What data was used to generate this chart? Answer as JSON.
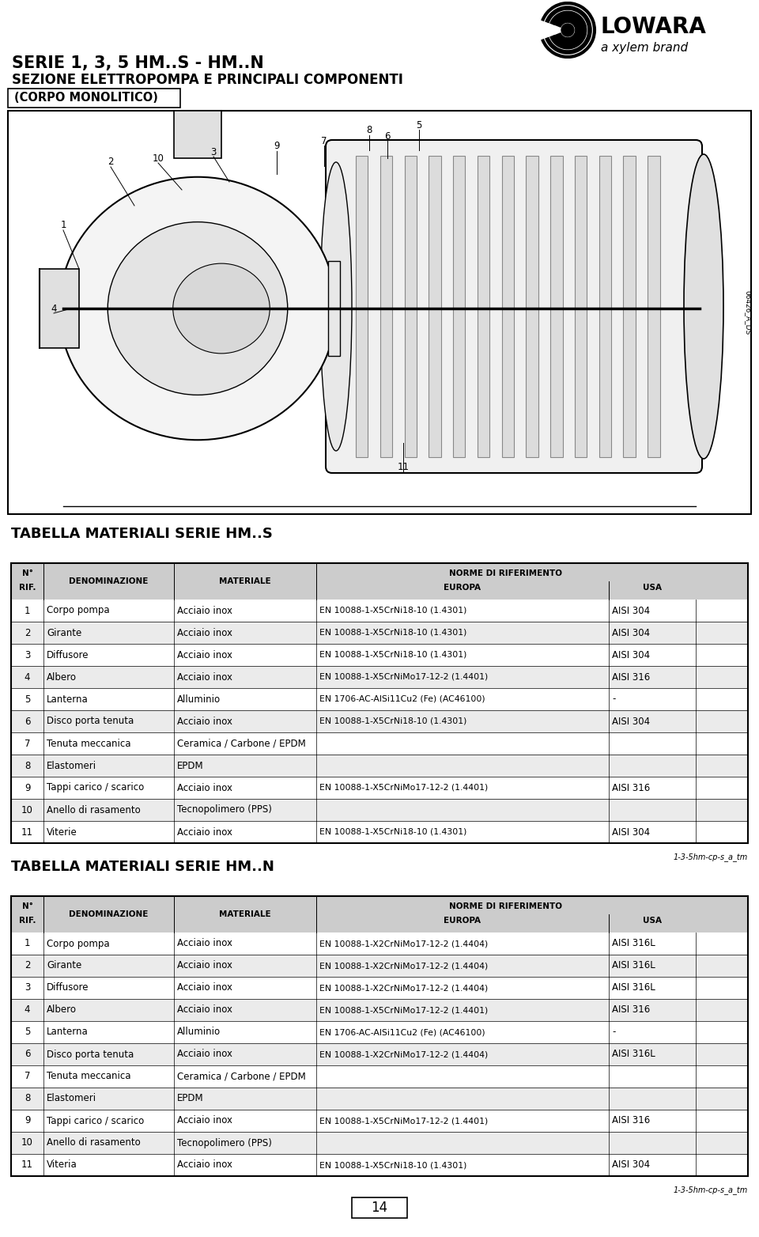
{
  "page_title_line1": "SERIE 1, 3, 5 HM..S - HM..N",
  "page_title_line2": "SEZIONE ELETTROPOMPA E PRINCIPALI COMPONENTI",
  "corpo_label": "(CORPO MONOLITICO)",
  "logo_text": "LOWARA",
  "xylem_text": "a xylem brand",
  "watermark": "06426_A_DS",
  "footer_code": "1-3-5hm-cp-s_a_tm",
  "page_number": "14",
  "table1_title": "TABELLA MATERIALI SERIE HM..S",
  "table2_title": "TABELLA MATERIALI SERIE HM..N",
  "table_s_rows": [
    [
      "1",
      "Corpo pompa",
      "Acciaio inox",
      "EN 10088-1-X5CrNi18-10 (1.4301)",
      "AISI 304"
    ],
    [
      "2",
      "Girante",
      "Acciaio inox",
      "EN 10088-1-X5CrNi18-10 (1.4301)",
      "AISI 304"
    ],
    [
      "3",
      "Diffusore",
      "Acciaio inox",
      "EN 10088-1-X5CrNi18-10 (1.4301)",
      "AISI 304"
    ],
    [
      "4",
      "Albero",
      "Acciaio inox",
      "EN 10088-1-X5CrNiMo17-12-2 (1.4401)",
      "AISI 316"
    ],
    [
      "5",
      "Lanterna",
      "Alluminio",
      "EN 1706-AC-AlSi11Cu2 (Fe) (AC46100)",
      "-"
    ],
    [
      "6",
      "Disco porta tenuta",
      "Acciaio inox",
      "EN 10088-1-X5CrNi18-10 (1.4301)",
      "AISI 304"
    ],
    [
      "7",
      "Tenuta meccanica",
      "Ceramica / Carbone / EPDM",
      "",
      ""
    ],
    [
      "8",
      "Elastomeri",
      "EPDM",
      "",
      ""
    ],
    [
      "9",
      "Tappi carico / scarico",
      "Acciaio inox",
      "EN 10088-1-X5CrNiMo17-12-2 (1.4401)",
      "AISI 316"
    ],
    [
      "10",
      "Anello di rasamento",
      "Tecnopolimero (PPS)",
      "",
      ""
    ],
    [
      "11",
      "Viterie",
      "Acciaio inox",
      "EN 10088-1-X5CrNi18-10 (1.4301)",
      "AISI 304"
    ]
  ],
  "table_n_rows": [
    [
      "1",
      "Corpo pompa",
      "Acciaio inox",
      "EN 10088-1-X2CrNiMo17-12-2 (1.4404)",
      "AISI 316L"
    ],
    [
      "2",
      "Girante",
      "Acciaio inox",
      "EN 10088-1-X2CrNiMo17-12-2 (1.4404)",
      "AISI 316L"
    ],
    [
      "3",
      "Diffusore",
      "Acciaio inox",
      "EN 10088-1-X2CrNiMo17-12-2 (1.4404)",
      "AISI 316L"
    ],
    [
      "4",
      "Albero",
      "Acciaio inox",
      "EN 10088-1-X5CrNiMo17-12-2 (1.4401)",
      "AISI 316"
    ],
    [
      "5",
      "Lanterna",
      "Alluminio",
      "EN 1706-AC-AlSi11Cu2 (Fe) (AC46100)",
      "-"
    ],
    [
      "6",
      "Disco porta tenuta",
      "Acciaio inox",
      "EN 10088-1-X2CrNiMo17-12-2 (1.4404)",
      "AISI 316L"
    ],
    [
      "7",
      "Tenuta meccanica",
      "Ceramica / Carbone / EPDM",
      "",
      ""
    ],
    [
      "8",
      "Elastomeri",
      "EPDM",
      "",
      ""
    ],
    [
      "9",
      "Tappi carico / scarico",
      "Acciaio inox",
      "EN 10088-1-X5CrNiMo17-12-2 (1.4401)",
      "AISI 316"
    ],
    [
      "10",
      "Anello di rasamento",
      "Tecnopolimero (PPS)",
      "",
      ""
    ],
    [
      "11",
      "Viteria",
      "Acciaio inox",
      "EN 10088-1-X5CrNi18-10 (1.4301)",
      "AISI 304"
    ]
  ],
  "bg_color": "#ffffff",
  "header_bg": "#cccccc",
  "row_alt_bg": "#ebebeb",
  "row_bg": "#ffffff",
  "border_color": "#000000"
}
